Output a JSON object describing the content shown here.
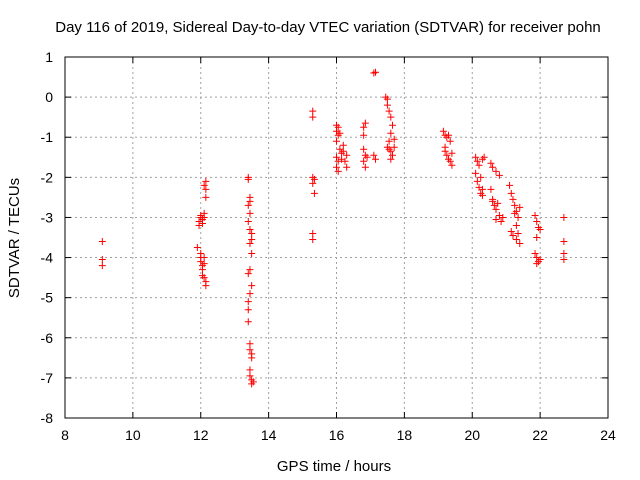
{
  "chart_data": {
    "type": "scatter",
    "title": "Day 116 of 2019, Sidereal Day-to-day VTEC variation (SDTVAR) for receiver pohn",
    "xlabel": "GPS time / hours",
    "ylabel": "SDTVAR / TECUs",
    "xlim": [
      8,
      24
    ],
    "ylim": [
      -8,
      1
    ],
    "xticks": [
      8,
      10,
      12,
      14,
      16,
      18,
      20,
      22,
      24
    ],
    "yticks": [
      -8,
      -7,
      -6,
      -5,
      -4,
      -3,
      -2,
      -1,
      0,
      1
    ],
    "xtick_labels": [
      "8",
      "10",
      "12",
      "14",
      "16",
      "18",
      "20",
      "22",
      "24"
    ],
    "ytick_labels": [
      "-8",
      "-7",
      "-6",
      "-5",
      "-4",
      "-3",
      "-2",
      "-1",
      "0",
      "1"
    ],
    "grid": true,
    "marker": "+",
    "color": "#ff0000",
    "series": [
      {
        "name": "SDTVAR",
        "points": [
          [
            9.1,
            -3.6
          ],
          [
            9.1,
            -4.05
          ],
          [
            9.1,
            -4.2
          ],
          [
            11.9,
            -3.75
          ],
          [
            11.95,
            -3.1
          ],
          [
            11.95,
            -3.2
          ],
          [
            12.0,
            -3.0
          ],
          [
            12.0,
            -2.95
          ],
          [
            12.05,
            -3.05
          ],
          [
            12.05,
            -3.15
          ],
          [
            12.1,
            -2.9
          ],
          [
            12.1,
            -3.0
          ],
          [
            12.15,
            -2.1
          ],
          [
            12.15,
            -2.3
          ],
          [
            12.15,
            -2.5
          ],
          [
            12.1,
            -2.2
          ],
          [
            12.0,
            -4.0
          ],
          [
            12.0,
            -4.1
          ],
          [
            12.05,
            -4.2
          ],
          [
            12.05,
            -4.3
          ],
          [
            12.1,
            -4.0
          ],
          [
            12.1,
            -4.5
          ],
          [
            12.15,
            -4.6
          ],
          [
            12.15,
            -4.7
          ],
          [
            12.1,
            -4.15
          ],
          [
            12.05,
            -4.45
          ],
          [
            12.0,
            -3.9
          ],
          [
            13.4,
            -2.0
          ],
          [
            13.4,
            -2.05
          ],
          [
            13.45,
            -2.5
          ],
          [
            13.45,
            -2.6
          ],
          [
            13.45,
            -2.9
          ],
          [
            13.4,
            -3.1
          ],
          [
            13.45,
            -3.3
          ],
          [
            13.5,
            -3.4
          ],
          [
            13.5,
            -3.55
          ],
          [
            13.45,
            -3.65
          ],
          [
            13.5,
            -3.9
          ],
          [
            13.45,
            -4.3
          ],
          [
            13.4,
            -4.4
          ],
          [
            13.5,
            -4.7
          ],
          [
            13.45,
            -4.9
          ],
          [
            13.4,
            -5.1
          ],
          [
            13.4,
            -5.3
          ],
          [
            13.4,
            -5.6
          ],
          [
            13.45,
            -6.15
          ],
          [
            13.45,
            -6.3
          ],
          [
            13.5,
            -6.4
          ],
          [
            13.5,
            -6.5
          ],
          [
            13.45,
            -6.8
          ],
          [
            13.45,
            -6.95
          ],
          [
            13.5,
            -7.05
          ],
          [
            13.5,
            -7.15
          ],
          [
            13.55,
            -7.1
          ],
          [
            13.4,
            -2.7
          ],
          [
            15.3,
            -0.35
          ],
          [
            15.3,
            -0.5
          ],
          [
            15.3,
            -2.0
          ],
          [
            15.3,
            -2.15
          ],
          [
            15.35,
            -2.05
          ],
          [
            15.35,
            -2.4
          ],
          [
            15.3,
            -3.4
          ],
          [
            15.3,
            -3.55
          ],
          [
            16.0,
            -0.7
          ],
          [
            16.0,
            -0.85
          ],
          [
            16.05,
            -0.75
          ],
          [
            16.05,
            -0.95
          ],
          [
            16.1,
            -0.9
          ],
          [
            16.0,
            -1.1
          ],
          [
            16.0,
            -1.5
          ],
          [
            16.05,
            -1.6
          ],
          [
            16.0,
            -1.75
          ],
          [
            16.05,
            -1.85
          ],
          [
            16.1,
            -1.3
          ],
          [
            16.15,
            -1.4
          ],
          [
            16.15,
            -1.55
          ],
          [
            16.2,
            -1.35
          ],
          [
            16.25,
            -1.6
          ],
          [
            16.3,
            -1.45
          ],
          [
            16.3,
            -1.75
          ],
          [
            16.2,
            -1.2
          ],
          [
            16.8,
            -0.75
          ],
          [
            16.85,
            -0.65
          ],
          [
            16.8,
            -0.95
          ],
          [
            16.85,
            -1.45
          ],
          [
            16.8,
            -1.6
          ],
          [
            16.85,
            -1.75
          ],
          [
            16.9,
            -1.5
          ],
          [
            16.8,
            -1.3
          ],
          [
            17.1,
            0.6
          ],
          [
            17.15,
            0.62
          ],
          [
            17.1,
            -1.45
          ],
          [
            17.15,
            -1.55
          ],
          [
            17.45,
            0.0
          ],
          [
            17.5,
            -0.05
          ],
          [
            17.5,
            -0.2
          ],
          [
            17.55,
            -0.35
          ],
          [
            17.6,
            -0.5
          ],
          [
            17.65,
            -0.7
          ],
          [
            17.6,
            -0.9
          ],
          [
            17.55,
            -1.1
          ],
          [
            17.5,
            -1.25
          ],
          [
            17.6,
            -1.35
          ],
          [
            17.65,
            -1.45
          ],
          [
            17.7,
            -1.25
          ],
          [
            17.7,
            -1.05
          ],
          [
            17.55,
            -1.3
          ],
          [
            17.6,
            -1.55
          ],
          [
            19.15,
            -0.85
          ],
          [
            19.2,
            -0.95
          ],
          [
            19.25,
            -1.0
          ],
          [
            19.3,
            -0.95
          ],
          [
            19.35,
            -1.1
          ],
          [
            19.2,
            -1.35
          ],
          [
            19.25,
            -1.45
          ],
          [
            19.3,
            -1.55
          ],
          [
            19.35,
            -1.6
          ],
          [
            19.4,
            -1.4
          ],
          [
            19.4,
            -1.7
          ],
          [
            19.2,
            -1.25
          ],
          [
            20.1,
            -1.5
          ],
          [
            20.15,
            -1.6
          ],
          [
            20.2,
            -1.7
          ],
          [
            20.1,
            -1.9
          ],
          [
            20.15,
            -2.1
          ],
          [
            20.2,
            -2.25
          ],
          [
            20.25,
            -2.4
          ],
          [
            20.3,
            -2.3
          ],
          [
            20.3,
            -1.55
          ],
          [
            20.35,
            -1.5
          ],
          [
            20.25,
            -2.0
          ],
          [
            20.3,
            -2.45
          ],
          [
            20.55,
            -1.65
          ],
          [
            20.6,
            -1.75
          ],
          [
            20.7,
            -1.85
          ],
          [
            20.8,
            -1.95
          ],
          [
            20.55,
            -2.3
          ],
          [
            20.6,
            -2.55
          ],
          [
            20.65,
            -2.7
          ],
          [
            20.7,
            -2.8
          ],
          [
            20.75,
            -2.65
          ],
          [
            20.8,
            -2.95
          ],
          [
            20.85,
            -3.1
          ],
          [
            20.9,
            -3.0
          ],
          [
            20.6,
            -2.6
          ],
          [
            20.7,
            -3.05
          ],
          [
            21.1,
            -2.2
          ],
          [
            21.15,
            -2.4
          ],
          [
            21.2,
            -2.55
          ],
          [
            21.25,
            -2.7
          ],
          [
            21.3,
            -2.85
          ],
          [
            21.35,
            -3.0
          ],
          [
            21.3,
            -3.2
          ],
          [
            21.35,
            -3.4
          ],
          [
            21.15,
            -3.35
          ],
          [
            21.2,
            -3.45
          ],
          [
            21.3,
            -3.55
          ],
          [
            21.4,
            -3.65
          ],
          [
            21.25,
            -2.9
          ],
          [
            21.4,
            -2.75
          ],
          [
            21.85,
            -2.95
          ],
          [
            21.9,
            -3.1
          ],
          [
            21.95,
            -3.25
          ],
          [
            22.0,
            -3.3
          ],
          [
            21.9,
            -3.5
          ],
          [
            21.85,
            -3.9
          ],
          [
            21.9,
            -4.0
          ],
          [
            21.95,
            -4.1
          ],
          [
            22.0,
            -4.05
          ],
          [
            21.9,
            -4.15
          ],
          [
            22.7,
            -3.0
          ],
          [
            22.7,
            -3.6
          ],
          [
            22.7,
            -3.9
          ],
          [
            22.7,
            -4.05
          ]
        ]
      }
    ]
  }
}
